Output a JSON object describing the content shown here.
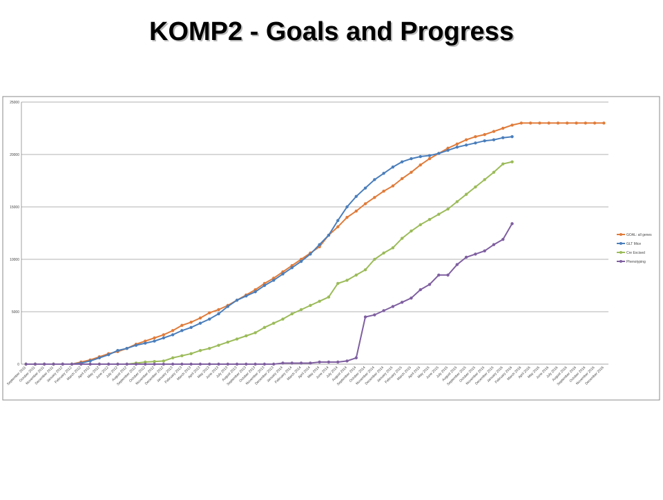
{
  "chart_data": {
    "type": "line",
    "title": "KOMP2 - Goals and Progress",
    "categories": [
      "September 2011",
      "October 2011",
      "November 2011",
      "December 2011",
      "January 2012",
      "February 2012",
      "March 2012",
      "April 2012",
      "May 2012",
      "June 2012",
      "July 2012",
      "August 2012",
      "September 2012",
      "October 2012",
      "November 2012",
      "December 2012",
      "January 2013",
      "February 2013",
      "March 2013",
      "April 2013",
      "May 2013",
      "June 2013",
      "July 2013",
      "August 2013",
      "September 2013",
      "October 2013",
      "November 2013",
      "December 2013",
      "January 2014",
      "February 2014",
      "March 2014",
      "April 2014",
      "May 2014",
      "June 2014",
      "July 2014",
      "August 2014",
      "September 2014",
      "October 2014",
      "November 2014",
      "December 2014",
      "January 2015",
      "February 2015",
      "March 2015",
      "April 2015",
      "May 2015",
      "June 2015",
      "July 2015",
      "August 2015",
      "September 2015",
      "October 2015",
      "November 2015",
      "December 2015",
      "January 2016",
      "February 2016",
      "March 2016",
      "April 2016",
      "May 2016",
      "June 2016",
      "July 2016",
      "August 2016",
      "September 2016",
      "October 2016",
      "November 2016",
      "December 2016"
    ],
    "series": [
      {
        "name": "GOAL: all genes",
        "color": "#e07b39",
        "values": [
          0,
          0,
          0,
          0,
          0,
          0,
          200,
          400,
          700,
          1000,
          1200,
          1500,
          1900,
          2200,
          2500,
          2800,
          3200,
          3700,
          4000,
          4400,
          4900,
          5200,
          5600,
          6100,
          6600,
          7100,
          7700,
          8200,
          8800,
          9400,
          10000,
          10600,
          11200,
          12300,
          13100,
          14000,
          14600,
          15300,
          15900,
          16500,
          17000,
          17700,
          18300,
          19000,
          19600,
          20100,
          20600,
          21000,
          21400,
          21700,
          21900,
          22200,
          22500,
          22800,
          23000,
          23000,
          23000,
          23000,
          23000,
          23000,
          23000,
          23000,
          23000,
          23000
        ]
      },
      {
        "name": "GLT Mice",
        "color": "#4a7ebb",
        "values": [
          0,
          0,
          0,
          0,
          0,
          0,
          100,
          300,
          600,
          900,
          1300,
          1500,
          1800,
          2000,
          2200,
          2500,
          2800,
          3200,
          3500,
          3900,
          4300,
          4800,
          5500,
          6100,
          6500,
          6900,
          7500,
          8000,
          8600,
          9200,
          9800,
          10500,
          11400,
          12300,
          13700,
          15000,
          16000,
          16800,
          17600,
          18200,
          18800,
          19300,
          19600,
          19800,
          19900,
          20100,
          20400,
          20700,
          20900,
          21100,
          21300,
          21400,
          21600,
          21700,
          null,
          null,
          null,
          null,
          null,
          null,
          null,
          null,
          null,
          null
        ]
      },
      {
        "name": "Cre Excised",
        "color": "#9bbb59",
        "values": [
          0,
          0,
          0,
          0,
          0,
          0,
          0,
          0,
          0,
          0,
          0,
          0,
          100,
          200,
          250,
          300,
          600,
          800,
          1000,
          1300,
          1500,
          1800,
          2100,
          2400,
          2700,
          3000,
          3500,
          3900,
          4300,
          4800,
          5200,
          5600,
          6000,
          6400,
          7700,
          8000,
          8500,
          9000,
          10000,
          10600,
          11100,
          12000,
          12700,
          13300,
          13800,
          14300,
          14800,
          15500,
          16200,
          16900,
          17600,
          18300,
          19100,
          19300,
          null,
          null,
          null,
          null,
          null,
          null,
          null,
          null,
          null,
          null
        ]
      },
      {
        "name": "Phenotyping",
        "color": "#7f5fa0",
        "values": [
          0,
          0,
          0,
          0,
          0,
          0,
          0,
          0,
          0,
          0,
          0,
          0,
          0,
          0,
          0,
          0,
          0,
          0,
          0,
          0,
          0,
          0,
          0,
          0,
          0,
          0,
          0,
          0,
          100,
          100,
          100,
          100,
          200,
          200,
          200,
          300,
          600,
          4500,
          4700,
          5100,
          5500,
          5900,
          6300,
          7100,
          7600,
          8500,
          8500,
          9500,
          10200,
          10500,
          10800,
          11400,
          11900,
          13400,
          null,
          null,
          null,
          null,
          null,
          null,
          null,
          null,
          null,
          null
        ]
      }
    ],
    "ylim": [
      0,
      25000
    ],
    "yticks": [
      0,
      5000,
      10000,
      15000,
      20000,
      25000
    ],
    "grid": true,
    "legend": "right"
  }
}
